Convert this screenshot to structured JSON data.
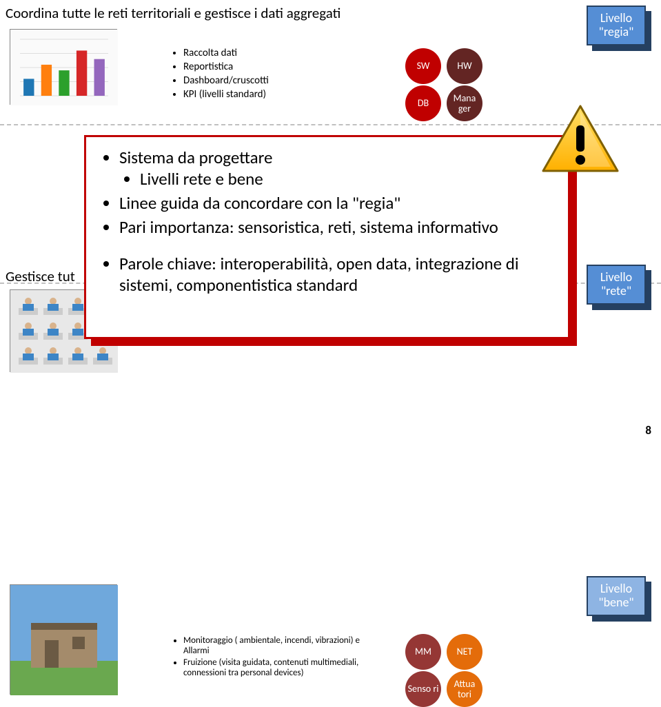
{
  "row1": {
    "title": "Coordina tutte le reti territoriali e gestisce i dati aggregati",
    "bullets": [
      "Raccolta dati",
      "Reportistica",
      "Dashboard/cruscotti",
      "KPI (livelli standard)"
    ],
    "circles": [
      {
        "label": "SW",
        "color": "#c00000"
      },
      {
        "label": "HW",
        "color": "#632523"
      },
      {
        "label": "DB",
        "color": "#c00000"
      },
      {
        "label": "Mana ger",
        "color": "#632523"
      }
    ],
    "badge": {
      "text": "Livello \"regia\"",
      "fill": "#558ed5"
    }
  },
  "row2": {
    "title_prefix": "Gestisce tut",
    "badge": {
      "text": "Livello \"rete\"",
      "fill": "#558ed5"
    }
  },
  "row3": {
    "bullets": [
      "Monitoraggio ( ambientale, incendi, vibrazioni) e Allarmi",
      "Fruizione (visita guidata, contenuti multimediali, connessioni tra personal devices)"
    ],
    "circles": [
      {
        "label": "MM",
        "color": "#953735"
      },
      {
        "label": "NET",
        "color": "#e46c0a"
      },
      {
        "label": "Senso ri",
        "color": "#953735"
      },
      {
        "label": "Attua tori",
        "color": "#e46c0a"
      }
    ],
    "badge": {
      "text": "Livello \"bene\"",
      "fill": "#8eb4e3"
    }
  },
  "overlay": {
    "group1": [
      {
        "text": "Sistema da progettare",
        "sub": [
          "Livelli rete e bene"
        ]
      },
      {
        "text": "Linee guida da concordare con la  \"regia\""
      },
      {
        "text": "Pari importanza: sensoristica, reti, sistema informativo"
      }
    ],
    "group2": [
      {
        "text": "Parole chiave: interoperabilità, open data, integrazione di sistemi, componentistica standard"
      }
    ],
    "border_color": "#c00000"
  },
  "warning": {
    "fill": "#ffc000",
    "stroke": "#7f6000",
    "gloss": "#ffffff"
  },
  "badge_style": {
    "border": "#254061",
    "shadow": "#254061"
  },
  "page_number": "8",
  "thumb_chart": {
    "bars": [
      0.3,
      0.55,
      0.45,
      0.8,
      0.65
    ],
    "colors": [
      "#1f77b4",
      "#ff7f0e",
      "#2ca02c",
      "#d62728",
      "#9467bd"
    ],
    "grid": "#dddddd",
    "bg": "#fafafa"
  },
  "thumb_building": {
    "sky": "#6fa8dc",
    "ground": "#6aa84f",
    "wall": "#a48b6b",
    "shadow": "#6b5a44"
  },
  "thumb_people": {
    "bg": "#e8e8e8",
    "shirt": "#3d85c6",
    "desk": "#cccccc"
  }
}
